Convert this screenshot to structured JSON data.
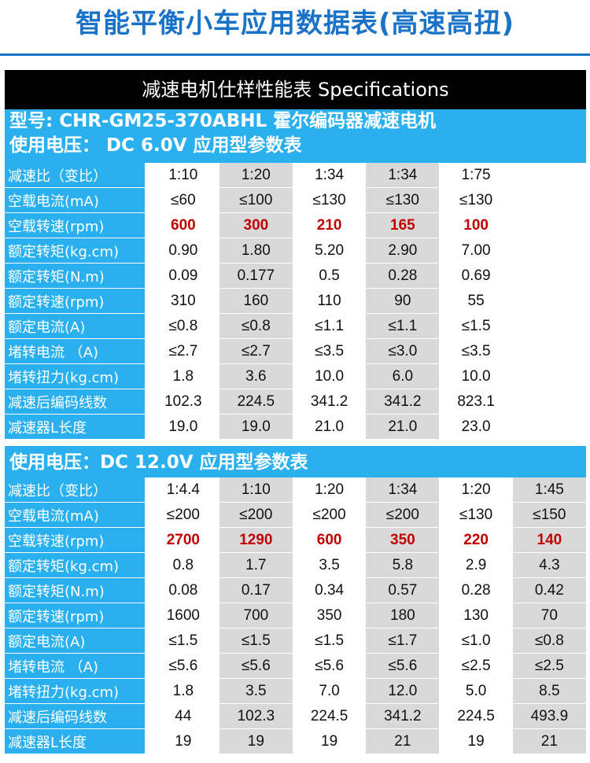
{
  "page_title": "智能平衡小车应用数据表(高速高扭)",
  "spec_header": "减速电机仕样性能表 Specifications",
  "model_line": "型号: CHR-GM25-370ABHL  霍尔编码器减速电机",
  "colors": {
    "title_blue": "#1a73c7",
    "label_blue": "#2ab0ee",
    "highlight_red": "#c00000",
    "column_gray": "#d9d9d9"
  },
  "sections": [
    {
      "voltage_line": "使用电压：  DC 6.0V   应用型参数表",
      "rows": [
        {
          "label": "减速比（变比）",
          "values": [
            "1:10",
            "1:20",
            "1:34",
            "1:34",
            "1:75",
            ""
          ]
        },
        {
          "label": "空载电流(mA)",
          "values": [
            "≤60",
            "≤100",
            "≤130",
            "≤130",
            "≤130",
            ""
          ]
        },
        {
          "label": "空载转速(rpm)",
          "values": [
            "600",
            "300",
            "210",
            "165",
            "100",
            ""
          ]
        },
        {
          "label": "额定转矩(kg.cm)",
          "values": [
            "0.90",
            "1.80",
            "5.20",
            "2.90",
            "7.00",
            ""
          ]
        },
        {
          "label": "额定转矩(N.m)",
          "values": [
            "0.09",
            "0.177",
            "0.5",
            "0.28",
            "0.69",
            ""
          ]
        },
        {
          "label": "额定转速(rpm)",
          "values": [
            "310",
            "160",
            "110",
            "90",
            "55",
            ""
          ]
        },
        {
          "label": "额定电流(A)",
          "values": [
            "≤0.8",
            "≤0.8",
            "≤1.1",
            "≤1.1",
            "≤1.5",
            ""
          ]
        },
        {
          "label": "堵转电流 （A)",
          "values": [
            "≤2.7",
            "≤2.7",
            "≤3.5",
            "≤3.0",
            "≤3.5",
            ""
          ]
        },
        {
          "label": "堵转扭力(kg.cm)",
          "values": [
            "1.8",
            "3.6",
            "10.0",
            "6.0",
            "10.0",
            ""
          ]
        },
        {
          "label": "减速后编码线数",
          "values": [
            "102.3",
            "224.5",
            "341.2",
            "341.2",
            "823.1",
            ""
          ]
        },
        {
          "label": "减速器L长度",
          "values": [
            "19.0",
            "19.0",
            "21.0",
            "21.0",
            "23.0",
            ""
          ]
        }
      ]
    },
    {
      "voltage_line": "使用电压：DC 12.0V   应用型参数表",
      "rows": [
        {
          "label": "减速比（变比）",
          "values": [
            "1:4.4",
            "1:10",
            "1:20",
            "1:34",
            "1:20",
            "1:45"
          ]
        },
        {
          "label": "空载电流(mA)",
          "values": [
            "≤200",
            "≤200",
            "≤200",
            "≤200",
            "≤130",
            "≤150"
          ]
        },
        {
          "label": "空载转速(rpm)",
          "values": [
            "2700",
            "1290",
            "600",
            "350",
            "220",
            "140"
          ]
        },
        {
          "label": "额定转矩(kg.cm)",
          "values": [
            "0.8",
            "1.7",
            "3.5",
            "5.8",
            "2.9",
            "4.3"
          ]
        },
        {
          "label": "额定转矩(N.m)",
          "values": [
            "0.08",
            "0.17",
            "0.34",
            "0.57",
            "0.28",
            "0.42"
          ]
        },
        {
          "label": "额定转速(rpm)",
          "values": [
            "1600",
            "700",
            "350",
            "180",
            "130",
            "70"
          ]
        },
        {
          "label": "额定电流(A)",
          "values": [
            "≤1.5",
            "≤1.5",
            "≤1.5",
            "≤1.7",
            "≤1.0",
            "≤0.8"
          ]
        },
        {
          "label": "堵转电流 （A)",
          "values": [
            "≤5.6",
            "≤5.6",
            "≤5.6",
            "≤5.6",
            "≤2.5",
            "≤2.5"
          ]
        },
        {
          "label": "堵转扭力(kg.cm)",
          "values": [
            "1.8",
            "3.5",
            "7.0",
            "12.0",
            "5.0",
            "8.5"
          ]
        },
        {
          "label": "减速后编码线数",
          "values": [
            "44",
            "102.3",
            "224.5",
            "341.2",
            "224.5",
            "493.9"
          ]
        },
        {
          "label": "减速器L长度",
          "values": [
            "19",
            "19",
            "19",
            "21",
            "19",
            "21"
          ]
        }
      ]
    }
  ]
}
